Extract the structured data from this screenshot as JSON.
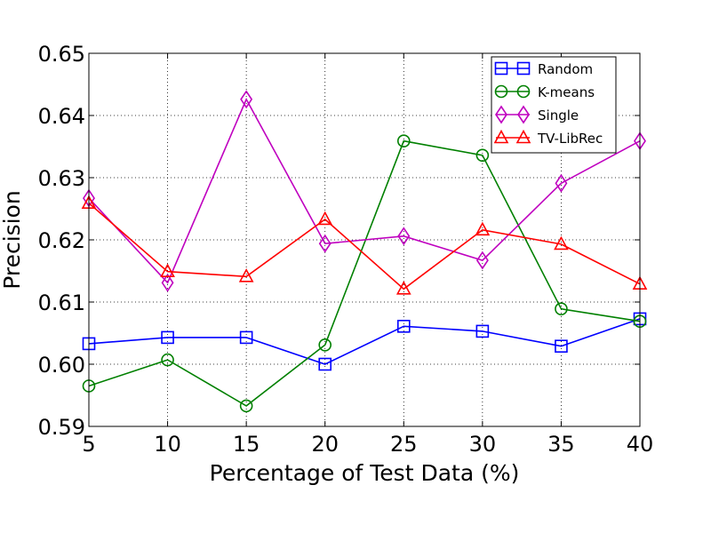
{
  "chart_data": {
    "type": "line",
    "title": "",
    "xlabel": "Percentage of Test Data (%)",
    "ylabel": "Precision",
    "x": [
      5,
      10,
      15,
      20,
      25,
      30,
      35,
      40
    ],
    "x_ticks": [
      "5",
      "10",
      "15",
      "20",
      "25",
      "30",
      "35",
      "40"
    ],
    "y_ticks": [
      "0.59",
      "0.60",
      "0.61",
      "0.62",
      "0.63",
      "0.64",
      "0.65"
    ],
    "xlim": [
      5,
      40
    ],
    "ylim": [
      0.59,
      0.65
    ],
    "grid": true,
    "legend_position": "top-right",
    "series": [
      {
        "name": "Random",
        "color": "#0000ff",
        "marker": "square",
        "values": [
          0.6033,
          0.6043,
          0.6043,
          0.6,
          0.6061,
          0.6053,
          0.6029,
          0.6073
        ]
      },
      {
        "name": "K-means",
        "color": "#008000",
        "marker": "circle",
        "values": [
          0.5965,
          0.6007,
          0.5933,
          0.6031,
          0.6359,
          0.6336,
          0.6089,
          0.6069
        ]
      },
      {
        "name": "Single",
        "color": "#bf00bf",
        "marker": "diamond",
        "values": [
          0.6267,
          0.6131,
          0.6426,
          0.6194,
          0.6206,
          0.6167,
          0.6291,
          0.6359
        ]
      },
      {
        "name": "TV-LibRec",
        "color": "#ff0000",
        "marker": "triangle",
        "values": [
          0.6259,
          0.6149,
          0.6141,
          0.6233,
          0.6121,
          0.6216,
          0.6193,
          0.6129
        ]
      }
    ]
  }
}
